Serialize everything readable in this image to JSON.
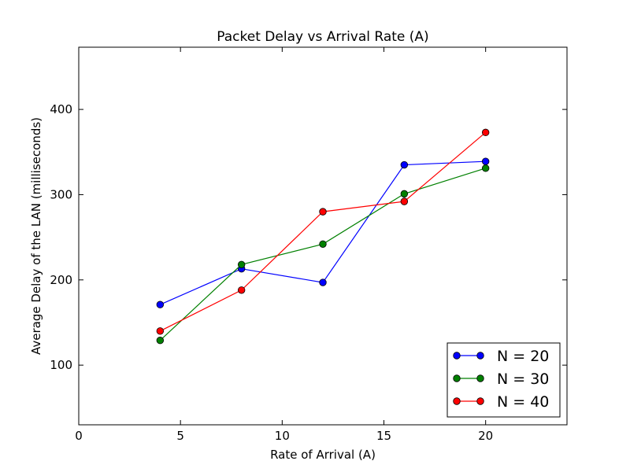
{
  "chart_data": {
    "type": "line",
    "title": "Packet Delay vs Arrival Rate (A)",
    "xlabel": "Rate of Arrival (A)",
    "ylabel": "Average Delay of the LAN (milliseconds)",
    "xlim": [
      0,
      24
    ],
    "ylim": [
      30,
      473
    ],
    "xticks": [
      0,
      5,
      10,
      15,
      20
    ],
    "xtick_labels": [
      "0",
      "5",
      "10",
      "15",
      "20"
    ],
    "yticks": [
      100,
      200,
      300,
      400
    ],
    "ytick_labels": [
      "100",
      "200",
      "300",
      "400"
    ],
    "grid": false,
    "legend_position": "lower-right",
    "x": [
      4,
      8,
      12,
      16,
      20
    ],
    "series": [
      {
        "name": "N = 20",
        "color": "#0000ff",
        "values": [
          171,
          213,
          197,
          335,
          339
        ]
      },
      {
        "name": "N = 30",
        "color": "#008000",
        "values": [
          129,
          218,
          242,
          301,
          331
        ]
      },
      {
        "name": "N = 40",
        "color": "#ff0000",
        "values": [
          140,
          188,
          280,
          292,
          373
        ]
      }
    ]
  }
}
